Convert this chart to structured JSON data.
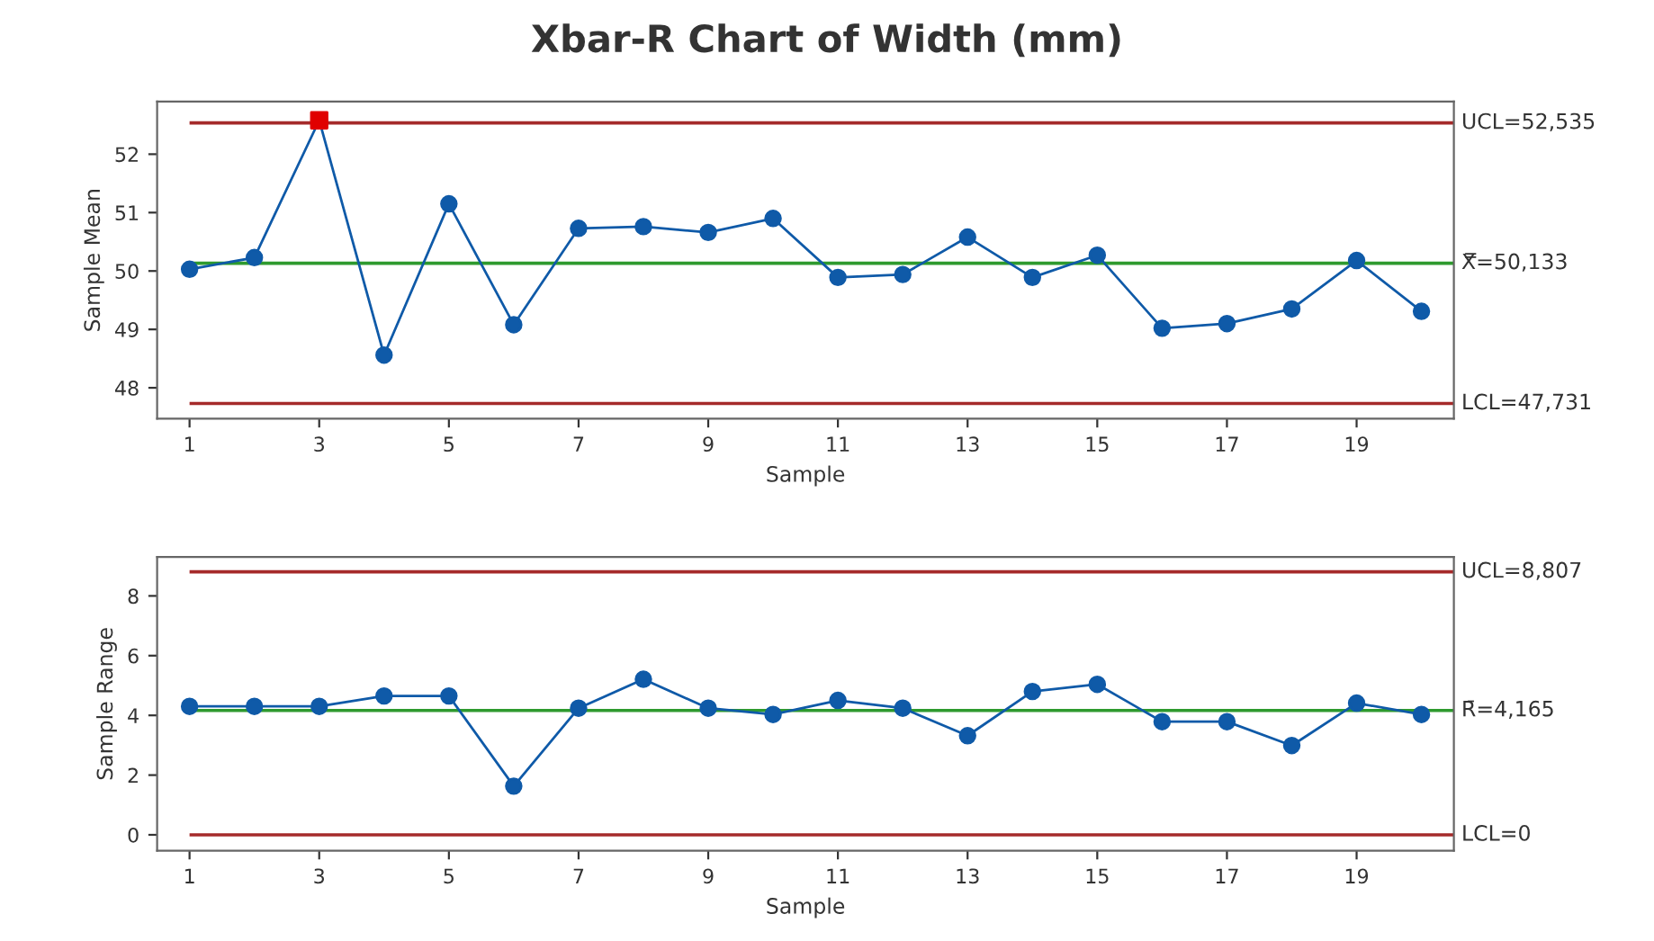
{
  "chart_data": [
    {
      "type": "line",
      "title": "Xbar-R Chart of Width (mm)",
      "xlabel": "Sample",
      "ylabel": "Sample Mean",
      "x": [
        1,
        2,
        3,
        4,
        5,
        6,
        7,
        8,
        9,
        10,
        11,
        12,
        13,
        14,
        15,
        16,
        17,
        18,
        19,
        20
      ],
      "xlim": [
        0.5,
        20.5
      ],
      "xticks": [
        1,
        3,
        5,
        7,
        9,
        11,
        13,
        15,
        17,
        19
      ],
      "ylim": [
        47.47,
        52.9
      ],
      "yticks": [
        48,
        49,
        50,
        51,
        52
      ],
      "grid": false,
      "marker": "circle",
      "line_style": "solid",
      "series": [
        {
          "color": "#0f5aa8",
          "values": [
            50.03,
            50.23,
            52.58,
            48.56,
            51.15,
            49.08,
            50.73,
            50.76,
            50.66,
            50.9,
            49.89,
            49.94,
            50.58,
            49.89,
            50.27,
            49.02,
            49.1,
            49.35,
            50.18,
            49.31
          ]
        },
        {
          "type": "scatter",
          "marker": "square",
          "color": "#e00000",
          "x": [
            3
          ],
          "values": [
            52.58
          ]
        }
      ],
      "ref_lines": [
        {
          "axis": "y",
          "value": 52.535,
          "label": "UCL=52,535",
          "color": "#a52a2a"
        },
        {
          "axis": "y",
          "value": 50.133,
          "label": "X̿=50,133",
          "color": "#2e9a2e"
        },
        {
          "axis": "y",
          "value": 47.731,
          "label": "LCL=47,731",
          "color": "#a52a2a"
        }
      ]
    },
    {
      "type": "line",
      "xlabel": "Sample",
      "ylabel": "Sample Range",
      "x": [
        1,
        2,
        3,
        4,
        5,
        6,
        7,
        8,
        9,
        10,
        11,
        12,
        13,
        14,
        15,
        16,
        17,
        18,
        19,
        20
      ],
      "xlim": [
        0.5,
        20.5
      ],
      "xticks": [
        1,
        3,
        5,
        7,
        9,
        11,
        13,
        15,
        17,
        19
      ],
      "ylim": [
        -0.53,
        9.3
      ],
      "yticks": [
        0,
        2,
        4,
        6,
        8
      ],
      "grid": false,
      "marker": "circle",
      "line_style": "solid",
      "series": [
        {
          "color": "#0f5aa8",
          "values": [
            4.3,
            4.3,
            4.3,
            4.65,
            4.65,
            1.63,
            4.24,
            5.21,
            4.24,
            4.03,
            4.5,
            4.24,
            3.32,
            4.8,
            5.04,
            3.79,
            3.79,
            2.99,
            4.41,
            4.03
          ]
        }
      ],
      "ref_lines": [
        {
          "axis": "y",
          "value": 8.807,
          "label": "UCL=8,807",
          "color": "#a52a2a"
        },
        {
          "axis": "y",
          "value": 4.165,
          "label": "R̄=4,165",
          "color": "#2e9a2e"
        },
        {
          "axis": "y",
          "value": 0,
          "label": "LCL=0",
          "color": "#a52a2a"
        }
      ]
    }
  ]
}
